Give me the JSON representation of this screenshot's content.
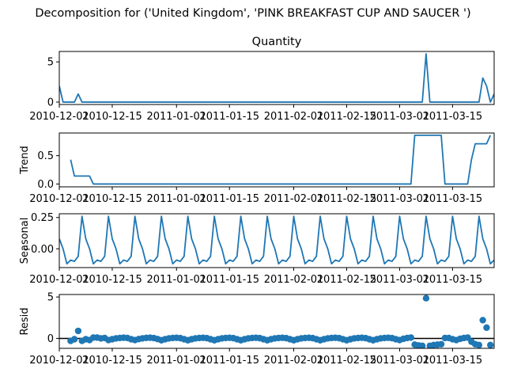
{
  "figure": {
    "suptitle": "Decomposition for ('United Kingdom', 'PINK BREAKFAST CUP AND SAUCER ')"
  },
  "colors": {
    "series": "#1f77b4",
    "axis": "#000000",
    "zero_line": "#000000"
  },
  "chart_data": [
    {
      "type": "line",
      "title": "Quantity",
      "xlabel": "",
      "ylabel": "",
      "x_start": "2010-12-01",
      "x_end": "2011-03-26",
      "x_ticks": [
        "2010-12-01",
        "2010-12-15",
        "2011-01-01",
        "2011-01-15",
        "2011-02-01",
        "2011-02-15",
        "2011-03-01",
        "2011-03-15"
      ],
      "y_ticks": [
        0,
        5
      ],
      "ylim": [
        -0.3,
        6.3
      ],
      "series": [
        {
          "points": [
            [
              "2010-12-01",
              2
            ],
            [
              "2010-12-02",
              0
            ],
            [
              "2010-12-05",
              0
            ],
            [
              "2010-12-06",
              1
            ],
            [
              "2010-12-07",
              0
            ],
            [
              "2011-03-07",
              0
            ],
            [
              "2011-03-08",
              6
            ],
            [
              "2011-03-09",
              0
            ],
            [
              "2011-03-22",
              0
            ],
            [
              "2011-03-23",
              3
            ],
            [
              "2011-03-24",
              2
            ],
            [
              "2011-03-25",
              0
            ],
            [
              "2011-03-26",
              1
            ]
          ]
        }
      ]
    },
    {
      "type": "line",
      "title": "",
      "xlabel": "",
      "ylabel": "Trend",
      "x_start": "2010-12-01",
      "x_end": "2011-03-26",
      "x_ticks": [
        "2010-12-01",
        "2010-12-15",
        "2011-01-01",
        "2011-01-15",
        "2011-02-01",
        "2011-02-15",
        "2011-03-01",
        "2011-03-15"
      ],
      "y_ticks": [
        0.0,
        0.5
      ],
      "ylim": [
        -0.05,
        0.9
      ],
      "series": [
        {
          "points": [
            [
              "2010-12-04",
              0.43
            ],
            [
              "2010-12-05",
              0.14
            ],
            [
              "2010-12-09",
              0.14
            ],
            [
              "2010-12-10",
              0.0
            ],
            [
              "2011-03-04",
              0.0
            ],
            [
              "2011-03-05",
              0.86
            ],
            [
              "2011-03-12",
              0.86
            ],
            [
              "2011-03-13",
              0.0
            ],
            [
              "2011-03-19",
              0.0
            ],
            [
              "2011-03-20",
              0.43
            ],
            [
              "2011-03-21",
              0.71
            ],
            [
              "2011-03-24",
              0.71
            ],
            [
              "2011-03-25",
              0.86
            ]
          ]
        }
      ]
    },
    {
      "type": "line",
      "title": "",
      "xlabel": "",
      "ylabel": "Seasonal",
      "x_start": "2010-12-01",
      "x_end": "2011-03-26",
      "x_ticks": [
        "2010-12-01",
        "2010-12-15",
        "2011-01-01",
        "2011-01-15",
        "2011-02-01",
        "2011-02-15",
        "2011-03-01",
        "2011-03-15"
      ],
      "y_ticks": [
        -0.0,
        0.25
      ],
      "y_tick_labels": [
        "−0.00",
        "0.25"
      ],
      "ylim": [
        -0.15,
        0.28
      ],
      "period": 7,
      "pattern": [
        0.08,
        0.0,
        -0.12,
        -0.09,
        -0.1,
        -0.06,
        0.26
      ],
      "series": [
        {
          "points": []
        }
      ]
    },
    {
      "type": "scatter",
      "title": "",
      "xlabel": "",
      "ylabel": "Resid",
      "x_start": "2010-12-01",
      "x_end": "2011-03-26",
      "x_ticks": [
        "2010-12-01",
        "2010-12-15",
        "2011-01-01",
        "2011-01-15",
        "2011-02-01",
        "2011-02-15",
        "2011-03-01",
        "2011-03-15"
      ],
      "y_ticks": [
        0,
        5
      ],
      "ylim": [
        -1.2,
        5.3
      ],
      "zero_line": true,
      "series": [
        {
          "points": [
            [
              "2010-12-04",
              -0.3
            ],
            [
              "2010-12-05",
              -0.1
            ],
            [
              "2010-12-06",
              0.9
            ],
            [
              "2010-12-07",
              -0.3
            ],
            [
              "2010-12-08",
              -0.1
            ],
            [
              "2010-12-09",
              -0.2
            ],
            [
              "2010-12-10",
              0.1
            ],
            [
              "2010-12-11",
              0.1
            ],
            [
              "2010-12-12",
              0.0
            ],
            [
              "2010-12-13",
              0.05
            ],
            [
              "2010-12-14",
              -0.2
            ],
            [
              "2010-12-15",
              -0.1
            ],
            [
              "2010-12-16",
              0.0
            ],
            [
              "2010-12-17",
              0.05
            ],
            [
              "2010-12-18",
              0.08
            ],
            [
              "2010-12-19",
              0.05
            ],
            [
              "2010-12-20",
              -0.1
            ],
            [
              "2010-12-21",
              -0.2
            ],
            [
              "2010-12-22",
              -0.08
            ],
            [
              "2010-12-23",
              0.0
            ],
            [
              "2010-12-24",
              0.06
            ],
            [
              "2010-12-25",
              0.08
            ],
            [
              "2010-12-26",
              0.04
            ],
            [
              "2010-12-27",
              -0.08
            ],
            [
              "2010-12-28",
              -0.22
            ],
            [
              "2010-12-29",
              -0.1
            ],
            [
              "2010-12-30",
              0.0
            ],
            [
              "2010-12-31",
              0.05
            ],
            [
              "2011-01-01",
              0.07
            ],
            [
              "2011-01-02",
              0.03
            ],
            [
              "2011-01-03",
              -0.1
            ],
            [
              "2011-01-04",
              -0.22
            ],
            [
              "2011-01-05",
              -0.1
            ],
            [
              "2011-01-06",
              0.0
            ],
            [
              "2011-01-07",
              0.05
            ],
            [
              "2011-01-08",
              0.07
            ],
            [
              "2011-01-09",
              0.03
            ],
            [
              "2011-01-10",
              -0.1
            ],
            [
              "2011-01-11",
              -0.22
            ],
            [
              "2011-01-12",
              -0.1
            ],
            [
              "2011-01-13",
              0.0
            ],
            [
              "2011-01-14",
              0.05
            ],
            [
              "2011-01-15",
              0.07
            ],
            [
              "2011-01-16",
              0.03
            ],
            [
              "2011-01-17",
              -0.1
            ],
            [
              "2011-01-18",
              -0.22
            ],
            [
              "2011-01-19",
              -0.1
            ],
            [
              "2011-01-20",
              0.0
            ],
            [
              "2011-01-21",
              0.05
            ],
            [
              "2011-01-22",
              0.07
            ],
            [
              "2011-01-23",
              0.03
            ],
            [
              "2011-01-24",
              -0.1
            ],
            [
              "2011-01-25",
              -0.22
            ],
            [
              "2011-01-26",
              -0.1
            ],
            [
              "2011-01-27",
              0.0
            ],
            [
              "2011-01-28",
              0.05
            ],
            [
              "2011-01-29",
              0.07
            ],
            [
              "2011-01-30",
              0.03
            ],
            [
              "2011-01-31",
              -0.1
            ],
            [
              "2011-02-01",
              -0.22
            ],
            [
              "2011-02-02",
              -0.1
            ],
            [
              "2011-02-03",
              0.0
            ],
            [
              "2011-02-04",
              0.05
            ],
            [
              "2011-02-05",
              0.07
            ],
            [
              "2011-02-06",
              0.03
            ],
            [
              "2011-02-07",
              -0.1
            ],
            [
              "2011-02-08",
              -0.22
            ],
            [
              "2011-02-09",
              -0.1
            ],
            [
              "2011-02-10",
              0.0
            ],
            [
              "2011-02-11",
              0.05
            ],
            [
              "2011-02-12",
              0.07
            ],
            [
              "2011-02-13",
              0.03
            ],
            [
              "2011-02-14",
              -0.1
            ],
            [
              "2011-02-15",
              -0.22
            ],
            [
              "2011-02-16",
              -0.1
            ],
            [
              "2011-02-17",
              0.0
            ],
            [
              "2011-02-18",
              0.05
            ],
            [
              "2011-02-19",
              0.07
            ],
            [
              "2011-02-20",
              0.03
            ],
            [
              "2011-02-21",
              -0.1
            ],
            [
              "2011-02-22",
              -0.22
            ],
            [
              "2011-02-23",
              -0.1
            ],
            [
              "2011-02-24",
              0.0
            ],
            [
              "2011-02-25",
              0.05
            ],
            [
              "2011-02-26",
              0.07
            ],
            [
              "2011-02-27",
              0.03
            ],
            [
              "2011-02-28",
              -0.1
            ],
            [
              "2011-03-01",
              -0.2
            ],
            [
              "2011-03-02",
              -0.05
            ],
            [
              "2011-03-03",
              0.05
            ],
            [
              "2011-03-04",
              0.1
            ],
            [
              "2011-03-05",
              -0.75
            ],
            [
              "2011-03-06",
              -0.85
            ],
            [
              "2011-03-07",
              -0.9
            ],
            [
              "2011-03-08",
              4.85
            ],
            [
              "2011-03-09",
              -0.9
            ],
            [
              "2011-03-10",
              -0.8
            ],
            [
              "2011-03-11",
              -0.75
            ],
            [
              "2011-03-12",
              -0.7
            ],
            [
              "2011-03-13",
              0.05
            ],
            [
              "2011-03-14",
              0.05
            ],
            [
              "2011-03-15",
              -0.1
            ],
            [
              "2011-03-16",
              -0.2
            ],
            [
              "2011-03-17",
              -0.05
            ],
            [
              "2011-03-18",
              0.05
            ],
            [
              "2011-03-19",
              0.1
            ],
            [
              "2011-03-20",
              -0.4
            ],
            [
              "2011-03-21",
              -0.7
            ],
            [
              "2011-03-22",
              -0.8
            ],
            [
              "2011-03-23",
              2.2
            ],
            [
              "2011-03-24",
              1.3
            ],
            [
              "2011-03-25",
              -0.8
            ]
          ]
        }
      ]
    }
  ]
}
